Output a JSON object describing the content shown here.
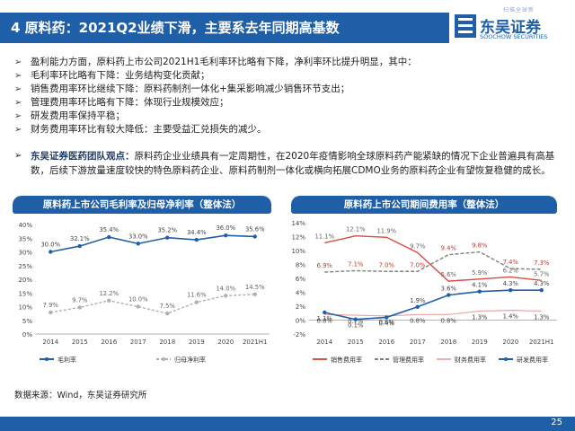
{
  "header": {
    "title": "4 原料药：2021Q2业绩下滑，主要系去年同期高基数"
  },
  "logo": {
    "top_text": "扫描全球新",
    "name_cn": "东吴证券",
    "name_en": "SOOCHOW SECURITIES"
  },
  "bullets": [
    "盈利能力方面，原料药上市公司2021H1毛利率环比略有下降，净利率环比提升明显，其中：",
    "毛利率环比略有下降：业务结构变化贡献；",
    "销售费用率环比继续下降：原料药制剂一体化+集采影响减少销售环节支出；",
    "管理费用率环比略有下降：体现行业规模效应；",
    "研发费用率保持平稳；",
    "财务费用率环比有较大降低：主要受益汇兑损失的减少。"
  ],
  "view": {
    "label": "东吴证券医药团队观点：",
    "text": "原料药企业业绩具有一定周期性，在2020年疫情影响全球原料药产能紧缺的情况下企业普遍具有高基数，后续下游放量速度较快的特色原料药企业、原料药制剂一体化或横向拓展CDMO业务的原料药企业有望恢复稳健的成长。"
  },
  "source": "数据来源：Wind，东吴证券研究所",
  "page_number": "25",
  "colors": {
    "brand": "#1f5fa8",
    "gross": "#1f5fa8",
    "net": "#b0b0b0",
    "sales": "#d94b3f",
    "mgmt": "#7f7f7f",
    "fin": "#e8a3a3",
    "rd": "#1f5fa8"
  },
  "chart_data": [
    {
      "type": "line",
      "title": "原料药上市公司毛利率及归母净利率（整体法）",
      "x": [
        "2014",
        "2015",
        "2016",
        "2017",
        "2018",
        "2019",
        "2020",
        "2021H1"
      ],
      "ylim": [
        0,
        40
      ],
      "yticks": [
        "0%",
        "5%",
        "10%",
        "15%",
        "20%",
        "25%",
        "30%",
        "35%",
        "40%"
      ],
      "legend_position": "bottom",
      "series": [
        {
          "name": "毛利率",
          "values": [
            30.0,
            32.1,
            35.4,
            33.0,
            35.2,
            34.4,
            36.0,
            35.6
          ],
          "labels": [
            "30.0%",
            "32.1%",
            "35.4%",
            "33.0%",
            "35.2%",
            "34.4%",
            "36.0%",
            "35.6%"
          ]
        },
        {
          "name": "归母净利率",
          "values": [
            7.9,
            9.7,
            12.2,
            10.0,
            7.5,
            11.6,
            14.0,
            14.5
          ],
          "labels": [
            "7.9%",
            "9.7%",
            "12.2%",
            "10.0%",
            "7.5%",
            "11.6%",
            "14.0%",
            "14.5%"
          ]
        }
      ]
    },
    {
      "type": "line",
      "title": "原料药上市公司期间费用率（整体法）",
      "x": [
        "2014",
        "2015",
        "2016",
        "2017",
        "2018",
        "2019",
        "2020",
        "2021H1"
      ],
      "ylim": [
        -2,
        14
      ],
      "yticks": [
        "-2%",
        "0%",
        "2%",
        "4%",
        "6%",
        "8%",
        "10%",
        "12%",
        "14%"
      ],
      "legend_position": "bottom",
      "series": [
        {
          "name": "销售费用率",
          "values": [
            11.1,
            12.1,
            11.9,
            9.7,
            5.6,
            5.9,
            6.2,
            5.7
          ],
          "labels": [
            "11.1%",
            "12.1%",
            "11.9%",
            "9.7%",
            "5.6%",
            "5.9%",
            "6.2%",
            "5.7%"
          ]
        },
        {
          "name": "管理费用率",
          "values": [
            6.9,
            7.1,
            7.0,
            7.0,
            9.4,
            9.8,
            7.4,
            7.3
          ],
          "labels": [
            "6.9%",
            "7.1%",
            "7.0%",
            "7.0%",
            "9.4%",
            "9.8%",
            "7.4%",
            "7.3%"
          ]
        },
        {
          "name": "财务费用率",
          "values": [
            0.8,
            0.7,
            0.6,
            0.8,
            0.8,
            1.3,
            1.4,
            1.3
          ],
          "labels": [
            "0.8%",
            "0.7%",
            "0.6%",
            "0.8%",
            "0.8%",
            "1.3%",
            "1.4%",
            "1.3%"
          ]
        },
        {
          "name": "研发费用率",
          "values": [
            1.1,
            0.1,
            0.4,
            1.9,
            3.6,
            4.1,
            4.3,
            4.3
          ],
          "labels": [
            "1.1%",
            "0.1%",
            "0.4%",
            "1.9%",
            "3.6%",
            "4.1%",
            "4.3%",
            "4.3%"
          ]
        }
      ]
    }
  ]
}
